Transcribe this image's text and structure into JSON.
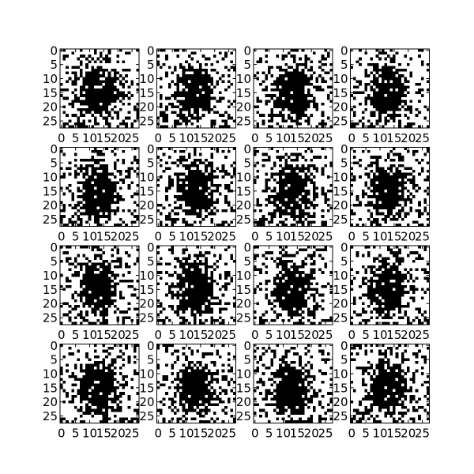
{
  "figure": {
    "background": "#ffffff",
    "grid_rows": 4,
    "grid_cols": 4,
    "axis_color": "#000000"
  },
  "chart_data": {
    "type": "heatmap",
    "title": "",
    "xlabel": "",
    "ylabel": "",
    "colormap": "gray_r (black = high, white = low)",
    "image_shape": [
      28,
      28
    ],
    "xlim": [
      -0.5,
      27.5
    ],
    "ylim": [
      27.5,
      -0.5
    ],
    "x_ticks": [
      0,
      5,
      10,
      15,
      20,
      25
    ],
    "x_tick_labels": [
      "0",
      "5",
      "10",
      "15",
      "20",
      "25"
    ],
    "y_ticks": [
      0,
      5,
      10,
      15,
      20,
      25
    ],
    "y_tick_labels": [
      "0",
      "5",
      "10",
      "15",
      "20",
      "25"
    ],
    "panels": 16,
    "pattern": "dense black blob centered near column 13, row 15 (rows 5-24, cols 7-19), surrounded by scattered black pixel noise on white",
    "blob": {
      "center_col": 13,
      "center_row": 15,
      "half_width_cols": 6.5,
      "half_height_rows": 9.5
    }
  }
}
